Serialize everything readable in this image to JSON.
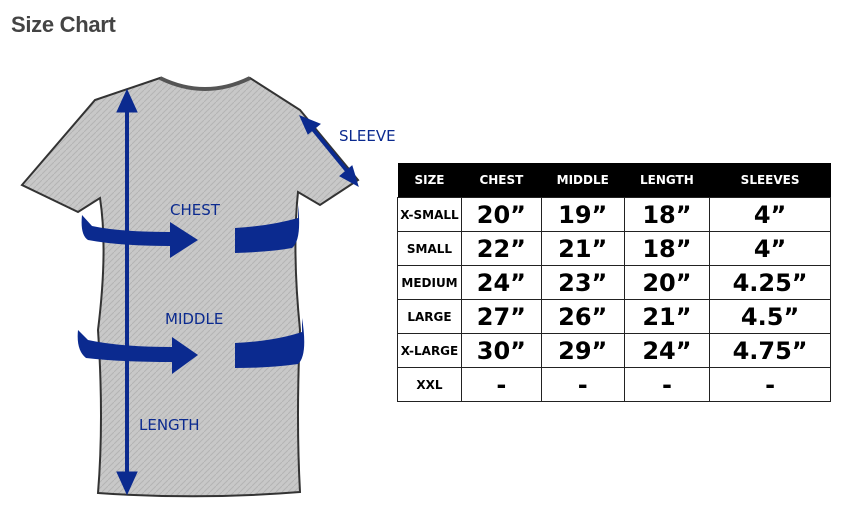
{
  "title": "Size Chart",
  "colors": {
    "arrow": "#0b2a8f",
    "shirt": "#c4c4c4",
    "header_bg": "#000000"
  },
  "labels": {
    "sleeve": "SLEEVE",
    "chest": "CHEST",
    "middle": "MIDDLE",
    "length": "LENGTH"
  },
  "table": {
    "headers": [
      "SIZE",
      "CHEST",
      "MIDDLE",
      "LENGTH",
      "SLEEVES"
    ],
    "rows": [
      [
        "X-SMALL",
        "20”",
        "19”",
        "18”",
        "4”"
      ],
      [
        "SMALL",
        "22”",
        "21”",
        "18”",
        "4”"
      ],
      [
        "MEDIUM",
        "24”",
        "23”",
        "20”",
        "4.25”"
      ],
      [
        "LARGE",
        "27”",
        "26”",
        "21”",
        "4.5”"
      ],
      [
        "X-LARGE",
        "30”",
        "29”",
        "24”",
        "4.75”"
      ],
      [
        "XXL",
        "-",
        "-",
        "-",
        "-"
      ]
    ]
  }
}
